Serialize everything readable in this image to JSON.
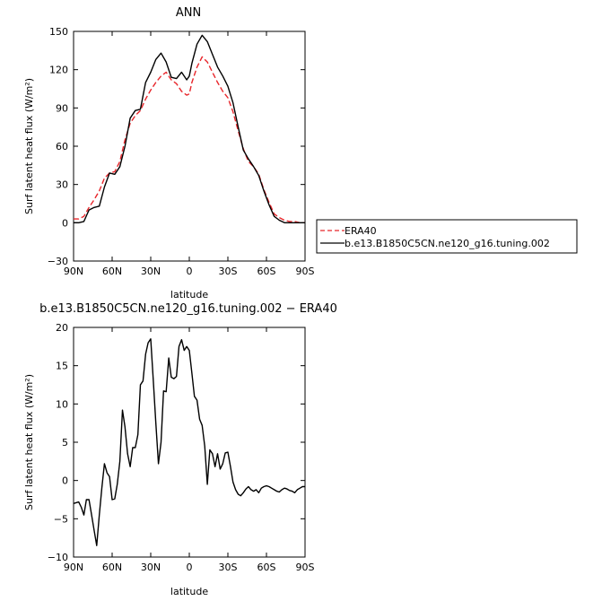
{
  "chart_data": [
    {
      "type": "line",
      "title": "ANN",
      "xlabel": "latitude",
      "ylabel": "Surf latent heat flux (W/m²)",
      "xlim": [
        90,
        -90
      ],
      "ylim": [
        -30,
        150
      ],
      "xticks": [
        90,
        60,
        30,
        0,
        -30,
        -60,
        -90
      ],
      "xtick_labels": [
        "90N",
        "60N",
        "30N",
        "0",
        "30S",
        "60S",
        "90S"
      ],
      "yticks": [
        -30,
        0,
        30,
        60,
        90,
        120,
        150
      ],
      "ytick_labels": [
        "−30",
        "0",
        "30",
        "60",
        "90",
        "120",
        "150"
      ],
      "legend": {
        "placement": "right"
      },
      "series": [
        {
          "name": "ERA40",
          "color": "#e8262b",
          "dash": true,
          "x": [
            90,
            86,
            82,
            78,
            74,
            70,
            66,
            62,
            58,
            54,
            50,
            46,
            42,
            38,
            34,
            30,
            26,
            22,
            18,
            14,
            10,
            6,
            2,
            0,
            -2,
            -6,
            -10,
            -14,
            -18,
            -22,
            -26,
            -30,
            -34,
            -38,
            -42,
            -46,
            -50,
            -54,
            -58,
            -62,
            -66,
            -70,
            -74,
            -78,
            -82,
            -86,
            -90
          ],
          "y": [
            3,
            3,
            5,
            12,
            18,
            25,
            35,
            39,
            40,
            48,
            65,
            78,
            84,
            88,
            97,
            104,
            110,
            115,
            118,
            112,
            109,
            103,
            100,
            101,
            110,
            122,
            130,
            126,
            118,
            110,
            103,
            98,
            87,
            72,
            58,
            48,
            44,
            38,
            26,
            16,
            7,
            4,
            2,
            1,
            1,
            0,
            0
          ]
        },
        {
          "name": "b.e13.B1850C5CN.ne120_g16.tuning.002",
          "color": "#000000",
          "dash": false,
          "x": [
            90,
            86,
            82,
            78,
            74,
            70,
            66,
            62,
            58,
            54,
            50,
            46,
            42,
            38,
            34,
            30,
            26,
            22,
            18,
            14,
            10,
            6,
            2,
            0,
            -2,
            -6,
            -10,
            -14,
            -18,
            -22,
            -26,
            -30,
            -34,
            -38,
            -42,
            -46,
            -50,
            -54,
            -58,
            -62,
            -66,
            -70,
            -74,
            -78,
            -82,
            -86,
            -90
          ],
          "y": [
            0,
            0,
            1,
            10,
            12,
            13,
            28,
            39,
            38,
            44,
            60,
            82,
            88,
            89,
            110,
            118,
            128,
            133,
            126,
            114,
            113,
            118,
            112,
            115,
            125,
            140,
            147,
            142,
            132,
            122,
            115,
            107,
            94,
            75,
            57,
            50,
            44,
            37,
            25,
            14,
            5,
            2,
            0,
            0,
            0,
            0,
            0
          ]
        }
      ]
    },
    {
      "type": "line",
      "title": "b.e13.B1850C5CN.ne120_g16.tuning.002 − ERA40",
      "xlabel": "latitude",
      "ylabel": "Surf latent heat flux (W/m²)",
      "xlim": [
        90,
        -90
      ],
      "ylim": [
        -10,
        20
      ],
      "xticks": [
        90,
        60,
        30,
        0,
        -30,
        -60,
        -90
      ],
      "xtick_labels": [
        "90N",
        "60N",
        "30N",
        "0",
        "30S",
        "60S",
        "90S"
      ],
      "yticks": [
        -10,
        -5,
        0,
        5,
        10,
        15,
        20
      ],
      "ytick_labels": [
        "−10",
        "−5",
        "0",
        "5",
        "10",
        "15",
        "20"
      ],
      "series": [
        {
          "color": "#000000",
          "dash": false,
          "x": [
            90,
            86,
            84,
            82,
            80,
            78,
            76,
            74,
            72,
            70,
            68,
            66,
            64,
            62,
            60,
            58,
            56,
            54,
            52,
            50,
            48,
            46,
            44,
            42,
            40,
            38,
            36,
            34,
            32,
            30,
            28,
            26,
            24,
            22,
            20,
            18,
            16,
            14,
            12,
            10,
            8,
            6,
            4,
            2,
            0,
            -2,
            -4,
            -6,
            -8,
            -10,
            -12,
            -14,
            -16,
            -18,
            -20,
            -22,
            -24,
            -26,
            -28,
            -30,
            -32,
            -34,
            -36,
            -38,
            -40,
            -42,
            -44,
            -46,
            -48,
            -50,
            -52,
            -54,
            -56,
            -58,
            -60,
            -62,
            -64,
            -66,
            -68,
            -70,
            -72,
            -74,
            -76,
            -78,
            -80,
            -82,
            -84,
            -86,
            -88,
            -90
          ],
          "y": [
            -3,
            -2.8,
            -3.5,
            -4.5,
            -2.5,
            -2.5,
            -4.5,
            -6.5,
            -8.5,
            -4.5,
            -1,
            2.2,
            1,
            0.5,
            -2.5,
            -2.4,
            -0.5,
            2.5,
            9.2,
            7,
            3.5,
            1.8,
            4.3,
            4.3,
            6,
            12.5,
            13,
            16.5,
            18,
            18.5,
            13,
            7.5,
            2.2,
            5,
            11.7,
            11.6,
            16,
            13.5,
            13.3,
            13.6,
            17.5,
            18.4,
            17,
            17.5,
            17,
            14,
            11,
            10.5,
            8,
            7.2,
            4.5,
            -0.5,
            4,
            3.5,
            1.8,
            3.5,
            1.5,
            2.2,
            3.6,
            3.7,
            1.8,
            -0.2,
            -1.2,
            -1.8,
            -2,
            -1.6,
            -1.1,
            -0.8,
            -1.2,
            -1.4,
            -1.2,
            -1.6,
            -1,
            -0.8,
            -0.7,
            -0.8,
            -1,
            -1.2,
            -1.4,
            -1.5,
            -1.2,
            -1,
            -1.1,
            -1.3,
            -1.4,
            -1.6,
            -1.2,
            -1,
            -0.8,
            -0.8
          ]
        }
      ]
    }
  ]
}
